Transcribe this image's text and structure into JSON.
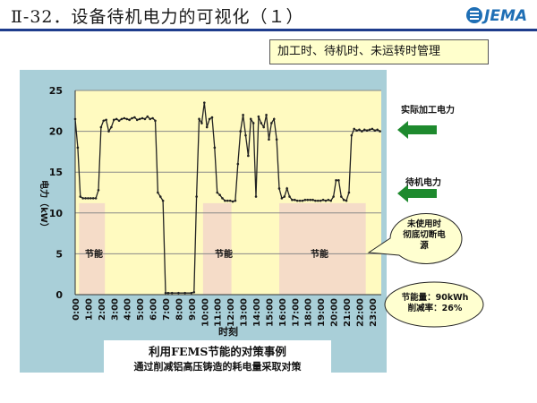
{
  "slide": {
    "title": "Ⅱ-32．设备待机电力的可视化（１）",
    "logo_text": "JEMA",
    "subtitle": "加工时、待机时、未运转时管理"
  },
  "labels": {
    "actual_power": "实际加工电力",
    "standby_power": "待机电力",
    "saving": "节能",
    "callout_shutdown": [
      "未使用时",
      "彻底切断电",
      "源"
    ],
    "callout_result": [
      "节能量：90kWh",
      "削减率：26%"
    ]
  },
  "caption": {
    "main": "利用FEMS节能的对策事例",
    "sub": "通过削减铝高压铸造的耗电量采取对策"
  },
  "colors": {
    "panel": "#a9cfd8",
    "plot_bg": "#fffac0",
    "saving_band": "#f5dcc8",
    "line": "#222222",
    "arrow": "#1e8a2e",
    "callout_fill": "#ffffd0"
  },
  "chart_data": {
    "type": "line",
    "xlabel": "时刻",
    "ylabel": "电力（kW）",
    "ylim": [
      0,
      25
    ],
    "yticks": [
      0,
      5,
      10,
      15,
      20,
      25
    ],
    "grid": true,
    "xticks": [
      "0:00",
      "1:00",
      "2:00",
      "3:00",
      "4:00",
      "5:00",
      "6:00",
      "7:00",
      "8:00",
      "9:00",
      "10:00",
      "11:00",
      "12:00",
      "13:00",
      "14:00",
      "15:00",
      "16:00",
      "17:00",
      "18:00",
      "19:00",
      "20:00",
      "21:00",
      "22:00",
      "23:00"
    ],
    "saving_periods": [
      [
        0.3,
        2.3
      ],
      [
        9.9,
        12.1
      ],
      [
        15.8,
        22.5
      ]
    ],
    "series": [
      {
        "x": [
          0,
          0.2,
          0.4,
          0.6,
          0.8,
          1.0,
          1.2,
          1.4,
          1.6,
          1.8,
          2.0,
          2.2,
          2.4,
          2.6,
          2.8,
          3.0,
          3.2,
          3.4,
          3.6,
          3.8,
          4.0,
          4.2,
          4.4,
          4.6,
          4.8,
          5.0,
          5.2,
          5.4,
          5.6,
          5.8,
          6.0,
          6.2,
          6.4,
          6.6,
          6.8,
          7.0,
          7.2,
          7.5,
          8.0,
          8.5,
          9.0,
          9.2,
          9.4,
          9.6,
          9.8,
          10.0,
          10.2,
          10.4,
          10.6,
          10.8,
          11.0,
          11.2,
          11.4,
          11.6,
          11.8,
          12.0,
          12.2,
          12.4,
          12.6,
          12.8,
          13.0,
          13.2,
          13.4,
          13.6,
          13.8,
          14.0,
          14.2,
          14.4,
          14.6,
          14.8,
          15.0,
          15.2,
          15.4,
          15.6,
          15.8,
          16.0,
          16.2,
          16.4,
          16.6,
          16.8,
          17.0,
          17.2,
          17.4,
          17.6,
          17.8,
          18.0,
          18.2,
          18.4,
          18.6,
          18.8,
          19.0,
          19.2,
          19.4,
          19.6,
          19.8,
          20.0,
          20.2,
          20.4,
          20.6,
          20.8,
          21.0,
          21.2,
          21.4,
          21.6,
          21.8,
          22.0,
          22.2,
          22.4,
          22.6,
          22.8,
          23.0,
          23.2,
          23.4,
          23.6
        ],
        "y": [
          21.5,
          18,
          12,
          11.8,
          11.8,
          11.8,
          11.8,
          11.8,
          11.8,
          12.8,
          20.5,
          21.3,
          21.4,
          20,
          20.5,
          21.4,
          21.5,
          21.3,
          21.5,
          21.6,
          21.5,
          21.4,
          21.6,
          21.7,
          21.4,
          21.5,
          21.6,
          21.5,
          21.8,
          21.5,
          21.6,
          21.3,
          12.5,
          12,
          11.5,
          0.2,
          0.2,
          0.2,
          0.2,
          0.2,
          0.2,
          0.3,
          12,
          21.5,
          21,
          23.5,
          20.5,
          21.5,
          21.7,
          18,
          12.5,
          12.2,
          11.8,
          11.5,
          11.5,
          11.5,
          11.4,
          11.5,
          16,
          20,
          22,
          19.5,
          17,
          21.5,
          21,
          12,
          21.8,
          21,
          20.5,
          22,
          19,
          21,
          21.5,
          19,
          13,
          11.8,
          12,
          13,
          12,
          11.6,
          11.6,
          11.5,
          11.5,
          11.5,
          11.6,
          11.6,
          11.6,
          11.6,
          11.5,
          11.5,
          11.5,
          11.6,
          11.5,
          11.6,
          11.5,
          12,
          14,
          14,
          12,
          11.6,
          11.5,
          12.5,
          19.5,
          20.3,
          20.1,
          20.2,
          20,
          20.2,
          20.1,
          20.2,
          20.3,
          20.1,
          20.2,
          20
        ]
      }
    ]
  }
}
